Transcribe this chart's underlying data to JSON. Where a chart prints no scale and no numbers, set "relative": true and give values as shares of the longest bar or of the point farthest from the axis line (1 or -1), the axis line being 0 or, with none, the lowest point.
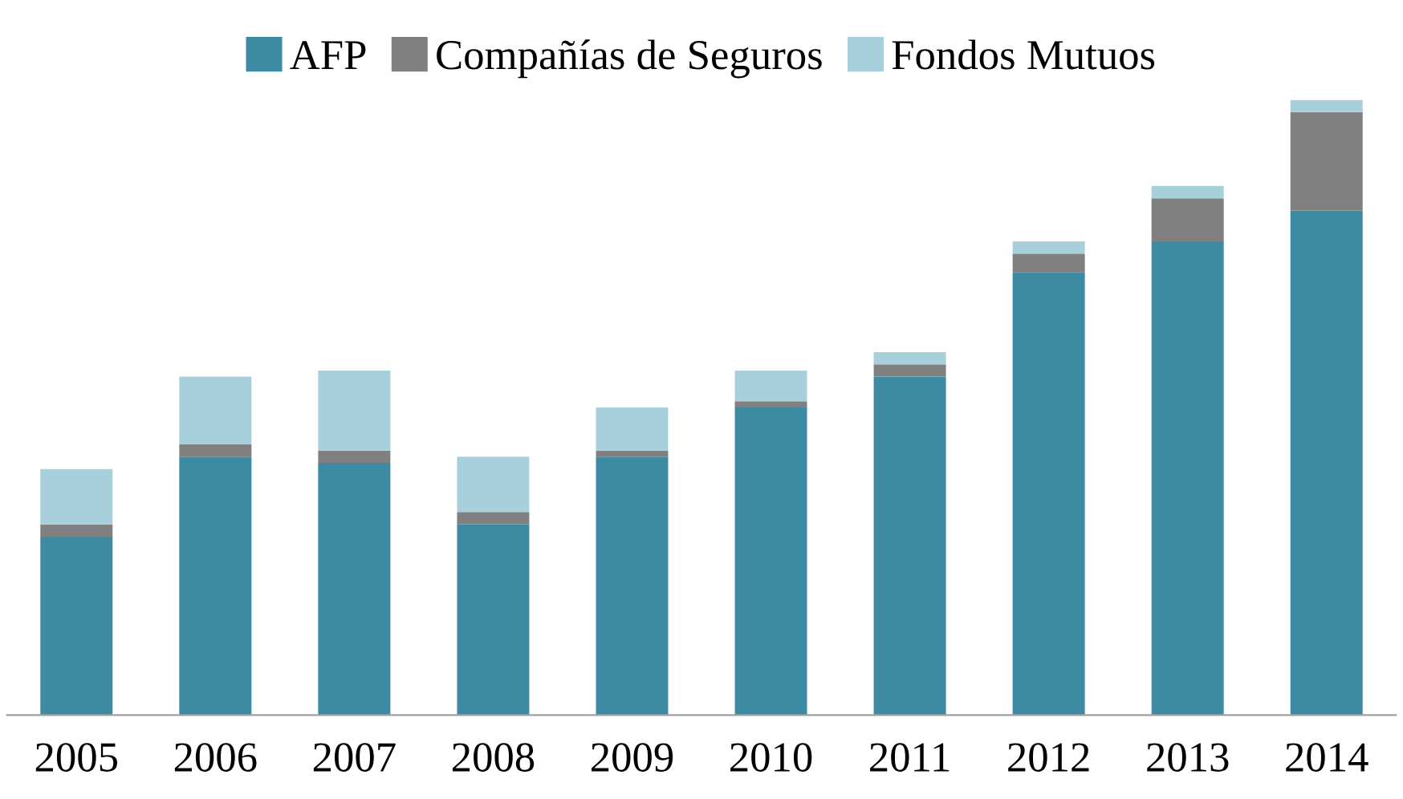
{
  "chart_data": {
    "type": "bar",
    "stacked": true,
    "relative": true,
    "legend": "top",
    "grid": false,
    "categories": [
      "2005",
      "2006",
      "2007",
      "2008",
      "2009",
      "2010",
      "2011",
      "2012",
      "2013",
      "2014"
    ],
    "series": [
      {
        "name": "AFP",
        "color": "#3d8ba3",
        "values": [
          0.29,
          0.42,
          0.41,
          0.31,
          0.42,
          0.5,
          0.55,
          0.72,
          0.77,
          0.82
        ]
      },
      {
        "name": "Compañías de Seguros",
        "color": "#808080",
        "values": [
          0.02,
          0.02,
          0.02,
          0.02,
          0.01,
          0.01,
          0.02,
          0.03,
          0.07,
          0.16
        ]
      },
      {
        "name": "Fondos Mutuos",
        "color": "#a8d0dc",
        "values": [
          0.09,
          0.11,
          0.13,
          0.09,
          0.07,
          0.05,
          0.02,
          0.02,
          0.02,
          0.02
        ]
      }
    ]
  }
}
